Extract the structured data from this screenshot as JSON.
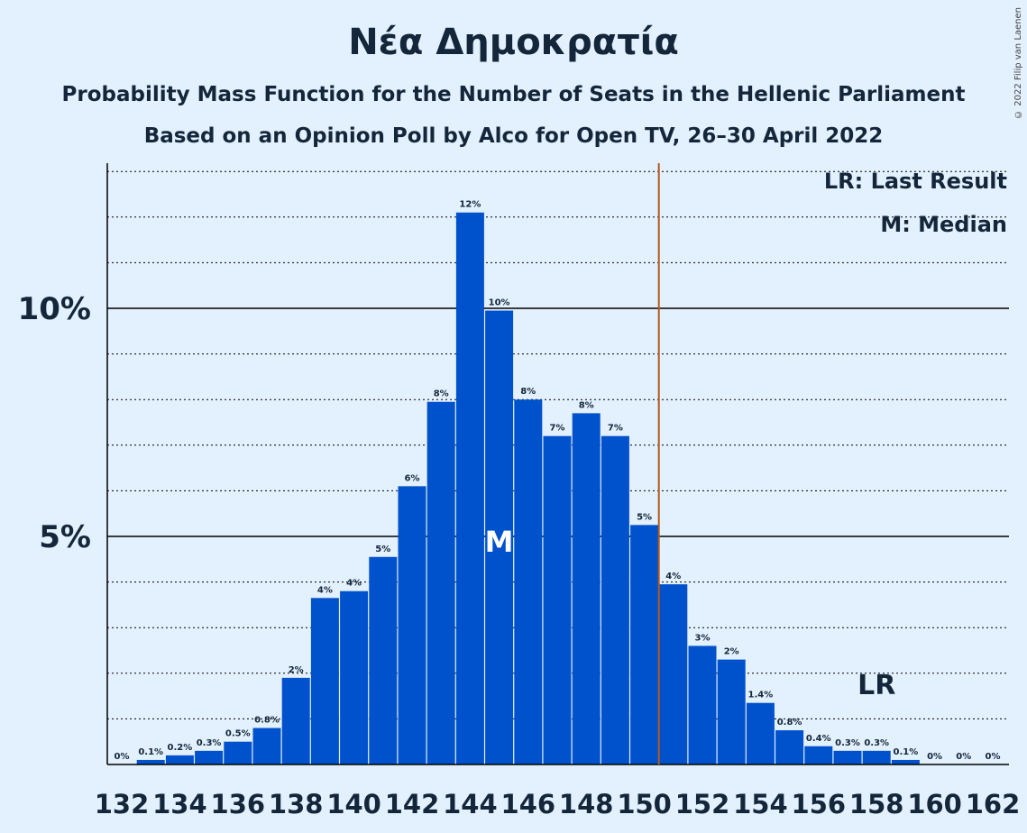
{
  "chart_data": {
    "type": "bar",
    "title": "Νέα Δημοκρατία",
    "subtitle": "Probability Mass Function for the Number of Seats in the Hellenic Parliament",
    "subtitle2": "Based on an Opinion Poll by Alco for Open TV, 26–30 April 2022",
    "copyright": "© 2022 Filip van Laenen",
    "seats": [
      132,
      133,
      134,
      135,
      136,
      137,
      138,
      139,
      140,
      141,
      142,
      143,
      144,
      145,
      146,
      147,
      148,
      149,
      150,
      151,
      152,
      153,
      154,
      155,
      156,
      157,
      158,
      159,
      160,
      161,
      162
    ],
    "values": [
      0,
      0.1,
      0.2,
      0.3,
      0.5,
      0.8,
      1.9,
      3.65,
      3.8,
      4.55,
      6.1,
      7.95,
      12.1,
      9.95,
      8.0,
      7.2,
      7.7,
      7.2,
      5.25,
      3.95,
      2.6,
      2.3,
      1.35,
      0.75,
      0.4,
      0.3,
      0.3,
      0.1,
      0,
      0,
      0
    ],
    "labels": [
      "0%",
      "0.1%",
      "0.2%",
      "0.3%",
      "0.5%",
      "0.8%",
      "2%",
      "4%",
      "4%",
      "5%",
      "6%",
      "8%",
      "12%",
      "10%",
      "8%",
      "7%",
      "8%",
      "7%",
      "5%",
      "4%",
      "3%",
      "2%",
      "1.4%",
      "0.8%",
      "0.4%",
      "0.3%",
      "0.3%",
      "0.1%",
      "0%",
      "0%",
      "0%"
    ],
    "x_tick_labels": [
      "132",
      "134",
      "136",
      "138",
      "140",
      "142",
      "144",
      "146",
      "148",
      "150",
      "152",
      "154",
      "156",
      "158",
      "160",
      "162"
    ],
    "y_tick_labels": [
      {
        "value": 5,
        "label": "5%"
      },
      {
        "value": 10,
        "label": "10%"
      }
    ],
    "ylim": [
      0,
      13.2
    ],
    "median_seat": 145,
    "median_marker": "M",
    "last_result_after_seat": 150,
    "last_result_label_seat": 158,
    "last_result_marker": "LR",
    "legend": [
      "LR: Last Result",
      "M: Median"
    ],
    "legend_position": "top-right",
    "colors": {
      "bar": "#0052cc",
      "last_result_line": "#b25b1a",
      "text": "#14263a",
      "background": "#e3f0fd"
    }
  }
}
